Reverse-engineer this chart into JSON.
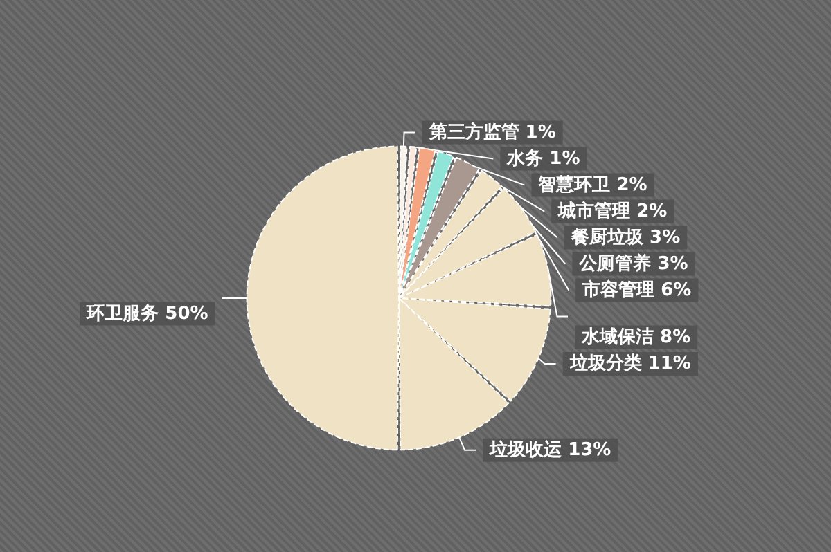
{
  "chart_data": {
    "type": "pie",
    "categories": [
      "第三方监管",
      "水务",
      "智慧环卫",
      "城市管理",
      "餐厨垃圾",
      "公厕管养",
      "市容管理",
      "水域保洁",
      "垃圾分类",
      "垃圾收运",
      "环卫服务"
    ],
    "values": [
      1,
      1,
      2,
      2,
      3,
      3,
      6,
      8,
      11,
      13,
      50
    ],
    "colors": [
      "#f7f3ea",
      "#fbe8dc",
      "#f4a582",
      "#8ee5d8",
      "#a89890",
      "#f0e2c4",
      "#f0e2c4",
      "#f0e2c4",
      "#f0e2c4",
      "#f0e2c4",
      "#f0e2c4"
    ],
    "value_labels": [
      "1%",
      "1%",
      "2%",
      "2%",
      "3%",
      "3%",
      "6%",
      "8%",
      "11%",
      "13%",
      "50%"
    ],
    "legend": false
  }
}
